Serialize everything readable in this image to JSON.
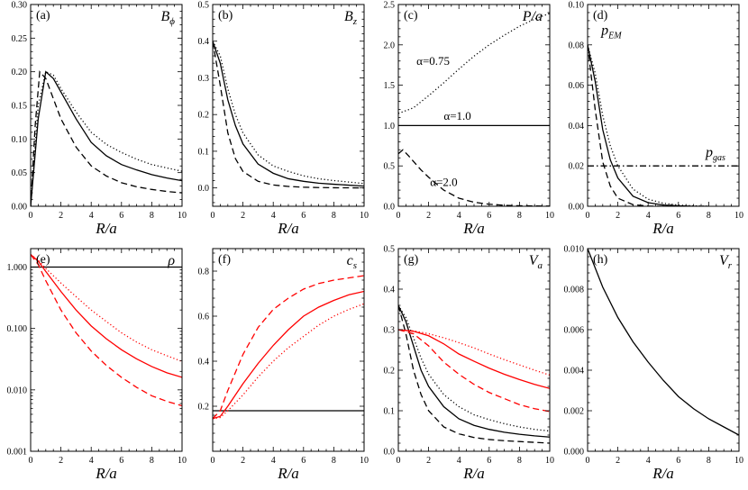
{
  "chart_data": [
    {
      "id": "a",
      "type": "line",
      "label": "(a)",
      "var_name": "B",
      "var_sub": "ϕ",
      "xlabel": "R/a",
      "xlim": [
        0,
        10
      ],
      "ylim": [
        0,
        0.3
      ],
      "yscale": "linear",
      "xticks": [
        "0",
        "2",
        "4",
        "6",
        "8",
        "10"
      ],
      "yticks": [
        "0.00",
        "0.05",
        "0.10",
        "0.15",
        "0.20",
        "0.25",
        "0.30"
      ],
      "ytick_values": [
        0,
        0.05,
        0.1,
        0.15,
        0.2,
        0.25,
        0.3
      ],
      "series": [
        {
          "name": "α=0.75",
          "color": "#000000",
          "style": "dotted",
          "x": [
            0,
            0.5,
            1,
            1.5,
            2,
            3,
            4,
            5,
            6,
            7,
            8,
            9,
            10
          ],
          "y": [
            0,
            0.15,
            0.2,
            0.195,
            0.175,
            0.14,
            0.11,
            0.092,
            0.08,
            0.07,
            0.062,
            0.057,
            0.052
          ]
        },
        {
          "name": "α=1.0",
          "color": "#000000",
          "style": "solid",
          "x": [
            0,
            0.5,
            1,
            1.5,
            2,
            3,
            4,
            5,
            6,
            7,
            8,
            9,
            10
          ],
          "y": [
            0,
            0.13,
            0.2,
            0.19,
            0.17,
            0.13,
            0.095,
            0.075,
            0.062,
            0.054,
            0.047,
            0.042,
            0.038
          ]
        },
        {
          "name": "α=2.0",
          "color": "#000000",
          "style": "dashed",
          "x": [
            0,
            0.3,
            0.6,
            1,
            1.5,
            2,
            3,
            4,
            5,
            6,
            7,
            8,
            9,
            10
          ],
          "y": [
            0,
            0.12,
            0.2,
            0.19,
            0.16,
            0.13,
            0.088,
            0.06,
            0.045,
            0.035,
            0.029,
            0.025,
            0.022,
            0.02
          ]
        }
      ]
    },
    {
      "id": "b",
      "type": "line",
      "label": "(b)",
      "var_name": "B",
      "var_sub": "z",
      "xlabel": "R/a",
      "xlim": [
        0,
        10
      ],
      "ylim": [
        -0.05,
        0.5
      ],
      "yscale": "linear",
      "xticks": [
        "0",
        "2",
        "4",
        "6",
        "8",
        "10"
      ],
      "yticks": [
        "0.0",
        "0.1",
        "0.2",
        "0.3",
        "0.4",
        "0.5"
      ],
      "ytick_values": [
        0,
        0.1,
        0.2,
        0.3,
        0.4,
        0.5
      ],
      "series": [
        {
          "name": "α=0.75",
          "color": "#000000",
          "style": "dotted",
          "x": [
            0,
            0.5,
            1,
            1.5,
            2,
            3,
            4,
            5,
            6,
            7,
            8,
            10
          ],
          "y": [
            0.4,
            0.36,
            0.27,
            0.2,
            0.15,
            0.09,
            0.06,
            0.045,
            0.033,
            0.025,
            0.02,
            0.012
          ]
        },
        {
          "name": "α=1.0",
          "color": "#000000",
          "style": "solid",
          "x": [
            0,
            0.5,
            1,
            1.5,
            2,
            3,
            4,
            5,
            6,
            7,
            8,
            10
          ],
          "y": [
            0.4,
            0.34,
            0.24,
            0.17,
            0.12,
            0.065,
            0.04,
            0.025,
            0.018,
            0.013,
            0.01,
            0.005
          ]
        },
        {
          "name": "α=2.0",
          "color": "#000000",
          "style": "dashed",
          "x": [
            0,
            0.5,
            1,
            1.5,
            2,
            3,
            4,
            5,
            6,
            7,
            8,
            10
          ],
          "y": [
            0.4,
            0.28,
            0.15,
            0.08,
            0.045,
            0.018,
            0.008,
            0.004,
            0.002,
            0.001,
            0.0005,
            0
          ]
        }
      ]
    },
    {
      "id": "c",
      "type": "line",
      "label": "(c)",
      "var_name": "P/a",
      "var_sub": "",
      "xlabel": "R/a",
      "xlim": [
        0,
        10
      ],
      "ylim": [
        0,
        2.5
      ],
      "yscale": "linear",
      "xticks": [
        "0",
        "2",
        "4",
        "6",
        "8",
        "10"
      ],
      "yticks": [
        "0.0",
        "0.5",
        "1.0",
        "1.5",
        "2.0",
        "2.5"
      ],
      "ytick_values": [
        0,
        0.5,
        1.0,
        1.5,
        2.0,
        2.5
      ],
      "annotations": [
        "α=0.75",
        "α=1.0",
        "α=2.0"
      ],
      "series": [
        {
          "name": "α=0.75",
          "color": "#000000",
          "style": "dotted",
          "x": [
            0,
            1,
            2,
            3,
            4,
            5,
            6,
            7,
            8,
            9,
            10
          ],
          "y": [
            1.15,
            1.22,
            1.37,
            1.53,
            1.7,
            1.86,
            2.0,
            2.12,
            2.23,
            2.32,
            2.39
          ]
        },
        {
          "name": "α=1.0",
          "color": "#000000",
          "style": "solid",
          "x": [
            0,
            10
          ],
          "y": [
            1.0,
            1.0
          ]
        },
        {
          "name": "α=2.0",
          "color": "#000000",
          "style": "dashed",
          "x": [
            0,
            0.3,
            0.7,
            1.5,
            2,
            3,
            4,
            5,
            6,
            7,
            8,
            10
          ],
          "y": [
            0.65,
            0.7,
            0.62,
            0.45,
            0.36,
            0.2,
            0.1,
            0.05,
            0.025,
            0.012,
            0.006,
            0.002
          ]
        }
      ]
    },
    {
      "id": "d",
      "type": "line",
      "label": "(d)",
      "var_name": "",
      "var_sub": "",
      "xlabel": "R/a",
      "xlim": [
        0,
        10
      ],
      "ylim": [
        0,
        0.1
      ],
      "yscale": "linear",
      "xticks": [
        "0",
        "2",
        "4",
        "6",
        "8",
        "10"
      ],
      "yticks": [
        "0.00",
        "0.02",
        "0.04",
        "0.06",
        "0.08",
        "0.10"
      ],
      "ytick_values": [
        0,
        0.02,
        0.04,
        0.06,
        0.08,
        0.1
      ],
      "annotations": [
        "p_EM",
        "p_gas"
      ],
      "series": [
        {
          "name": "p_EM α=0.75",
          "color": "#000000",
          "style": "dotted",
          "x": [
            0,
            0.5,
            1,
            1.5,
            2,
            3,
            4,
            5,
            6,
            7,
            8
          ],
          "y": [
            0.08,
            0.066,
            0.045,
            0.03,
            0.02,
            0.0085,
            0.0035,
            0.0015,
            0.0006,
            0.0002,
            0
          ]
        },
        {
          "name": "p_EM α=1.0",
          "color": "#000000",
          "style": "solid",
          "x": [
            0,
            0.5,
            1,
            1.5,
            2,
            3,
            4,
            5,
            6,
            7,
            8
          ],
          "y": [
            0.08,
            0.062,
            0.038,
            0.023,
            0.014,
            0.005,
            0.0018,
            0.0006,
            0.0002,
            0,
            0
          ]
        },
        {
          "name": "p_EM α=2.0",
          "color": "#000000",
          "style": "dashed",
          "x": [
            0,
            0.5,
            1,
            1.5,
            2,
            3,
            4,
            5
          ],
          "y": [
            0.08,
            0.048,
            0.022,
            0.01,
            0.004,
            0.0008,
            0.0001,
            0
          ]
        },
        {
          "name": "p_gas",
          "color": "#000000",
          "style": "dashdot",
          "x": [
            0,
            10
          ],
          "y": [
            0.02,
            0.02
          ]
        }
      ]
    },
    {
      "id": "e",
      "type": "line",
      "label": "(e)",
      "var_name": "ρ",
      "var_sub": "",
      "xlabel": "R/a",
      "xlim": [
        0,
        10
      ],
      "ylim": [
        0.001,
        2.0
      ],
      "yscale": "log",
      "xticks": [
        "0",
        "2",
        "4",
        "6",
        "8",
        "10"
      ],
      "yticks": [
        "0.001",
        "0.010",
        "0.100",
        "1.000"
      ],
      "ytick_values": [
        0.001,
        0.01,
        0.1,
        1.0
      ],
      "series": [
        {
          "name": "black α=1.0",
          "color": "#000000",
          "style": "solid",
          "x": [
            0,
            10
          ],
          "y": [
            1.0,
            1.0
          ]
        },
        {
          "name": "red α=0.75",
          "color": "#ff0000",
          "style": "dotted",
          "x": [
            0,
            0.5,
            1,
            2,
            3,
            4,
            5,
            6,
            7,
            8,
            9,
            10
          ],
          "y": [
            1.6,
            1.3,
            0.95,
            0.55,
            0.33,
            0.2,
            0.13,
            0.085,
            0.06,
            0.045,
            0.036,
            0.029
          ]
        },
        {
          "name": "red α=1.0",
          "color": "#ff0000",
          "style": "solid",
          "x": [
            0,
            0.5,
            1,
            2,
            3,
            4,
            5,
            6,
            7,
            8,
            9,
            10
          ],
          "y": [
            1.6,
            1.25,
            0.85,
            0.4,
            0.2,
            0.11,
            0.068,
            0.045,
            0.032,
            0.024,
            0.019,
            0.016
          ]
        },
        {
          "name": "red α=2.0",
          "color": "#ff0000",
          "style": "dashed",
          "x": [
            0,
            0.5,
            1,
            2,
            3,
            4,
            5,
            6,
            7,
            8,
            9,
            10
          ],
          "y": [
            1.6,
            1.1,
            0.6,
            0.2,
            0.085,
            0.043,
            0.025,
            0.016,
            0.011,
            0.008,
            0.0065,
            0.0055
          ]
        }
      ]
    },
    {
      "id": "f",
      "type": "line",
      "label": "(f)",
      "var_name": "c",
      "var_sub": "s",
      "xlabel": "R/a",
      "xlim": [
        0,
        10
      ],
      "ylim": [
        0,
        0.9
      ],
      "yscale": "linear",
      "xticks": [
        "0",
        "2",
        "4",
        "6",
        "8",
        "10"
      ],
      "yticks": [
        "0.2",
        "0.4",
        "0.6",
        "0.8"
      ],
      "ytick_values": [
        0.2,
        0.4,
        0.6,
        0.8
      ],
      "series": [
        {
          "name": "black α=1.0",
          "color": "#000000",
          "style": "solid",
          "x": [
            0,
            10
          ],
          "y": [
            0.18,
            0.18
          ]
        },
        {
          "name": "red α=0.75",
          "color": "#ff0000",
          "style": "dotted",
          "x": [
            0,
            0.5,
            1,
            2,
            3,
            4,
            5,
            6,
            7,
            8,
            9,
            10
          ],
          "y": [
            0.145,
            0.15,
            0.18,
            0.25,
            0.33,
            0.4,
            0.46,
            0.51,
            0.56,
            0.6,
            0.63,
            0.655
          ]
        },
        {
          "name": "red α=1.0",
          "color": "#ff0000",
          "style": "solid",
          "x": [
            0,
            0.5,
            1,
            2,
            3,
            4,
            5,
            6,
            7,
            8,
            9,
            10
          ],
          "y": [
            0.145,
            0.155,
            0.2,
            0.3,
            0.39,
            0.47,
            0.54,
            0.6,
            0.64,
            0.67,
            0.695,
            0.71
          ]
        },
        {
          "name": "red α=2.0",
          "color": "#ff0000",
          "style": "dashed",
          "x": [
            0,
            0.5,
            1,
            2,
            3,
            4,
            5,
            6,
            7,
            8,
            9,
            10
          ],
          "y": [
            0.145,
            0.18,
            0.27,
            0.43,
            0.55,
            0.63,
            0.68,
            0.72,
            0.745,
            0.76,
            0.77,
            0.78
          ]
        }
      ]
    },
    {
      "id": "g",
      "type": "line",
      "label": "(g)",
      "var_name": "V",
      "var_sub": "a",
      "xlabel": "R/a",
      "xlim": [
        0,
        10
      ],
      "ylim": [
        0,
        0.5
      ],
      "yscale": "linear",
      "xticks": [
        "0",
        "2",
        "4",
        "6",
        "8",
        "10"
      ],
      "yticks": [
        "0.0",
        "0.1",
        "0.2",
        "0.3",
        "0.4",
        "0.5"
      ],
      "ytick_values": [
        0,
        0.1,
        0.2,
        0.3,
        0.4,
        0.5
      ],
      "series": [
        {
          "name": "black α=0.75",
          "color": "#000000",
          "style": "dotted",
          "x": [
            0,
            0.5,
            1,
            1.5,
            2,
            3,
            4,
            5,
            6,
            7,
            8,
            9,
            10
          ],
          "y": [
            0.36,
            0.33,
            0.28,
            0.23,
            0.19,
            0.14,
            0.11,
            0.09,
            0.078,
            0.068,
            0.06,
            0.054,
            0.05
          ]
        },
        {
          "name": "black α=1.0",
          "color": "#000000",
          "style": "solid",
          "x": [
            0,
            0.5,
            1,
            1.5,
            2,
            3,
            4,
            5,
            6,
            7,
            8,
            9,
            10
          ],
          "y": [
            0.36,
            0.32,
            0.26,
            0.2,
            0.16,
            0.11,
            0.08,
            0.064,
            0.054,
            0.047,
            0.042,
            0.038,
            0.035
          ]
        },
        {
          "name": "black α=2.0",
          "color": "#000000",
          "style": "dashed",
          "x": [
            0,
            0.5,
            1,
            1.5,
            2,
            3,
            4,
            5,
            6,
            7,
            8,
            9,
            10
          ],
          "y": [
            0.36,
            0.29,
            0.2,
            0.14,
            0.1,
            0.06,
            0.043,
            0.034,
            0.029,
            0.026,
            0.024,
            0.022,
            0.02
          ]
        },
        {
          "name": "red α=0.75",
          "color": "#ff0000",
          "style": "dotted",
          "x": [
            0,
            1,
            2,
            3,
            4,
            5,
            6,
            7,
            8,
            9,
            10
          ],
          "y": [
            0.3,
            0.297,
            0.29,
            0.28,
            0.268,
            0.255,
            0.24,
            0.226,
            0.213,
            0.2,
            0.188
          ]
        },
        {
          "name": "red α=1.0",
          "color": "#ff0000",
          "style": "solid",
          "x": [
            0,
            1,
            2,
            3,
            4,
            5,
            6,
            7,
            8,
            9,
            10
          ],
          "y": [
            0.3,
            0.296,
            0.285,
            0.265,
            0.24,
            0.222,
            0.205,
            0.19,
            0.177,
            0.165,
            0.155
          ]
        },
        {
          "name": "red α=2.0",
          "color": "#ff0000",
          "style": "dashed",
          "x": [
            0,
            1,
            2,
            3,
            4,
            5,
            6,
            7,
            8,
            9,
            10
          ],
          "y": [
            0.3,
            0.29,
            0.26,
            0.22,
            0.19,
            0.165,
            0.145,
            0.13,
            0.115,
            0.105,
            0.098
          ]
        }
      ]
    },
    {
      "id": "h",
      "type": "line",
      "label": "(h)",
      "var_name": "V",
      "var_sub": "r",
      "xlabel": "R/a",
      "xlim": [
        0,
        10
      ],
      "ylim": [
        0,
        0.01
      ],
      "yscale": "linear",
      "xticks": [
        "0",
        "2",
        "4",
        "6",
        "8",
        "10"
      ],
      "yticks": [
        "0.000",
        "0.002",
        "0.004",
        "0.006",
        "0.008",
        "0.010"
      ],
      "ytick_values": [
        0,
        0.002,
        0.004,
        0.006,
        0.008,
        0.01
      ],
      "series": [
        {
          "name": "α=1.0",
          "color": "#000000",
          "style": "solid",
          "x": [
            0,
            1,
            2,
            3,
            4,
            5,
            6,
            7,
            8,
            9,
            10
          ],
          "y": [
            0.01,
            0.0081,
            0.0066,
            0.0054,
            0.0044,
            0.0035,
            0.0027,
            0.0021,
            0.0016,
            0.0012,
            0.0008
          ]
        }
      ]
    }
  ]
}
